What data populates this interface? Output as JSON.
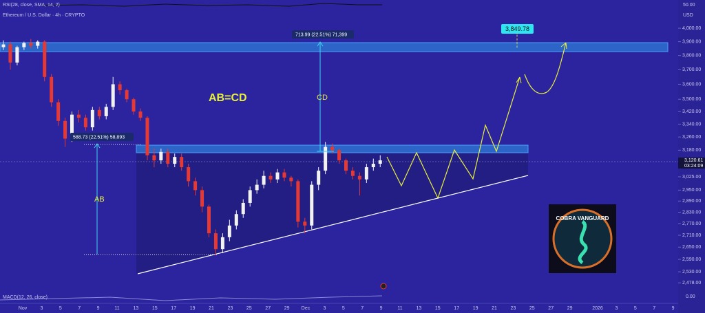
{
  "header": {
    "indicator": "RSI(28, close, SMA, 14, 2)",
    "symbol": "Ethereum / U.S. Dollar · 4h · CRYPTO",
    "macd": "MACD(12, 26, close)",
    "currency": "USD",
    "rsi_level": "50.00",
    "macd_level": "0.00"
  },
  "chart_data": {
    "type": "candlestick",
    "log_scale": true,
    "ylim": [
      2434,
      4121
    ],
    "yticks": [
      {
        "value": 4000,
        "label": "4,000.00"
      },
      {
        "value": 3900,
        "label": "3,900.00"
      },
      {
        "value": 3800,
        "label": "3,800.00"
      },
      {
        "value": 3700,
        "label": "3,700.00"
      },
      {
        "value": 3600,
        "label": "3,600.00"
      },
      {
        "value": 3500,
        "label": "3,500.00"
      },
      {
        "value": 3420,
        "label": "3,420.00"
      },
      {
        "value": 3340,
        "label": "3,340.00"
      },
      {
        "value": 3260,
        "label": "3,260.00"
      },
      {
        "value": 3180,
        "label": "3,180.00"
      },
      {
        "value": 3025,
        "label": "3,025.00"
      },
      {
        "value": 2950,
        "label": "2,950.00"
      },
      {
        "value": 2890,
        "label": "2,890.00"
      },
      {
        "value": 2830,
        "label": "2,830.00"
      },
      {
        "value": 2770,
        "label": "2,770.00"
      },
      {
        "value": 2710,
        "label": "2,710.00"
      },
      {
        "value": 2650,
        "label": "2,650.00"
      },
      {
        "value": 2590,
        "label": "2,590.00"
      },
      {
        "value": 2530,
        "label": "2,530.00"
      },
      {
        "value": 2478,
        "label": "2,478.00"
      }
    ],
    "x_labels": [
      "Nov",
      "3",
      "5",
      "7",
      "9",
      "11",
      "13",
      "15",
      "17",
      "19",
      "21",
      "23",
      "25",
      "27",
      "29",
      "Dec",
      "3",
      "5",
      "7",
      "9",
      "11",
      "13",
      "15",
      "17",
      "19",
      "21",
      "23",
      "25",
      "27",
      "29",
      "2026",
      "3",
      "5",
      "7",
      "9"
    ],
    "up_color": "#f2f2f2",
    "down_color": "#e53935",
    "open": [
      3860,
      3880,
      3750,
      3860,
      3890,
      3870,
      3900,
      3650,
      3480,
      3360,
      3250,
      3400,
      3380,
      3320,
      3430,
      3390,
      3450,
      3600,
      3560,
      3500,
      3420,
      3380,
      3150,
      3120,
      3170,
      3100,
      3140,
      3080,
      3000,
      2950,
      2860,
      2720,
      2640,
      2700,
      2760,
      2820,
      2880,
      2950,
      2980,
      3030,
      3010,
      3050,
      3020,
      3000,
      2780,
      2760,
      2980,
      3060,
      3200,
      3180,
      3120,
      3060,
      3030,
      3010,
      3080,
      3100
    ],
    "high": [
      3910,
      3900,
      3870,
      3900,
      3920,
      3910,
      3910,
      3670,
      3500,
      3380,
      3420,
      3430,
      3400,
      3450,
      3450,
      3470,
      3650,
      3620,
      3570,
      3510,
      3440,
      3390,
      3190,
      3190,
      3190,
      3160,
      3160,
      3100,
      3020,
      2970,
      2870,
      2740,
      2720,
      2790,
      2840,
      2900,
      2970,
      3010,
      3060,
      3050,
      3070,
      3070,
      3030,
      3010,
      2800,
      3000,
      3080,
      3230,
      3220,
      3190,
      3130,
      3080,
      3050,
      3100,
      3130,
      3150
    ],
    "low": [
      3840,
      3700,
      3730,
      3840,
      3850,
      3850,
      3620,
      3450,
      3330,
      3200,
      3230,
      3350,
      3300,
      3300,
      3370,
      3370,
      3430,
      3530,
      3480,
      3400,
      3360,
      3120,
      3080,
      3100,
      3080,
      3080,
      3060,
      2970,
      2920,
      2830,
      2700,
      2610,
      2620,
      2680,
      2740,
      2800,
      2860,
      2930,
      2960,
      2990,
      2990,
      3000,
      2970,
      2750,
      2720,
      2740,
      2950,
      3040,
      3160,
      3100,
      3040,
      3010,
      2920,
      2990,
      3060,
      3080
    ],
    "close": [
      3880,
      3750,
      3860,
      3890,
      3870,
      3900,
      3650,
      3480,
      3360,
      3250,
      3400,
      3380,
      3320,
      3430,
      3390,
      3450,
      3600,
      3560,
      3500,
      3420,
      3380,
      3150,
      3120,
      3170,
      3100,
      3140,
      3080,
      3000,
      2950,
      2860,
      2720,
      2640,
      2700,
      2760,
      2820,
      2880,
      2950,
      2980,
      3030,
      3010,
      3050,
      3020,
      3000,
      2780,
      2760,
      2980,
      3060,
      3200,
      3180,
      3120,
      3060,
      3030,
      3010,
      3080,
      3100,
      3120
    ]
  },
  "annotations": {
    "pattern": "AB=CD",
    "ab": "AB",
    "cd": "CD",
    "ab_measure": "588.73 (22.51%) 58,893",
    "cd_measure": "713.99 (22.51%) 71,399",
    "target": "3,849.78",
    "last_price": "3,120.61",
    "countdown": "03:24:09"
  },
  "logo": {
    "text": "COBRA VANGUARD"
  }
}
